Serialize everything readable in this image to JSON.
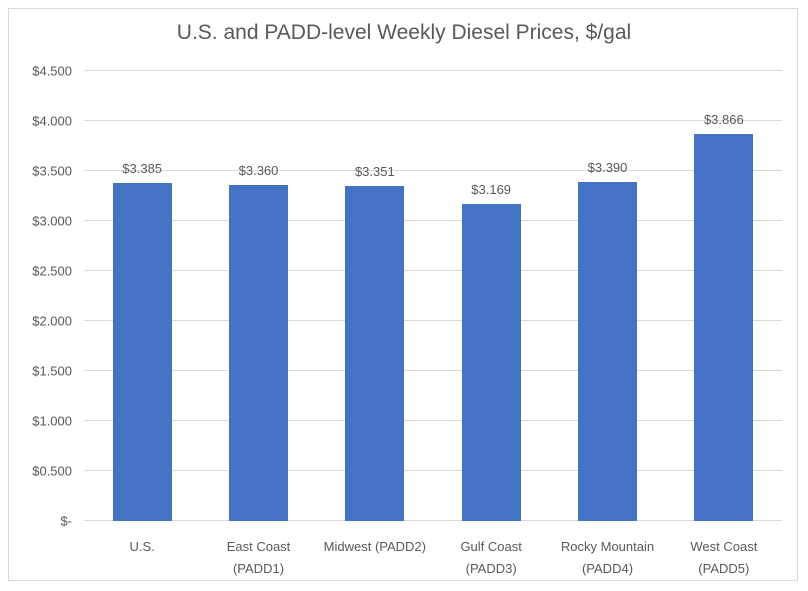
{
  "chart_data": {
    "type": "bar",
    "title": "U.S. and PADD-level Weekly Diesel Prices, $/gal",
    "categories": [
      "U.S.",
      "East Coast (PADD1)",
      "Midwest (PADD2)",
      "Gulf Coast (PADD3)",
      "Rocky Mountain (PADD4)",
      "West Coast (PADD5)"
    ],
    "category_lines": [
      [
        "U.S."
      ],
      [
        "East Coast",
        "(PADD1)"
      ],
      [
        "Midwest (PADD2)"
      ],
      [
        "Gulf Coast",
        "(PADD3)"
      ],
      [
        "Rocky Mountain",
        "(PADD4)"
      ],
      [
        "West Coast",
        "(PADD5)"
      ]
    ],
    "values": [
      3.385,
      3.36,
      3.351,
      3.169,
      3.39,
      3.866
    ],
    "value_labels": [
      "$3.385",
      "$3.360",
      "$3.351",
      "$3.169",
      "$3.390",
      "$3.866"
    ],
    "xlabel": "",
    "ylabel": "",
    "ylim": [
      0,
      4.5
    ],
    "ytick_step": 0.5,
    "yticks": [
      {
        "value": 4.5,
        "label": "$4.500"
      },
      {
        "value": 4.0,
        "label": "$4.000"
      },
      {
        "value": 3.5,
        "label": "$3.500"
      },
      {
        "value": 3.0,
        "label": "$3.000"
      },
      {
        "value": 2.5,
        "label": "$2.500"
      },
      {
        "value": 2.0,
        "label": "$2.000"
      },
      {
        "value": 1.5,
        "label": "$1.500"
      },
      {
        "value": 1.0,
        "label": "$1.000"
      },
      {
        "value": 0.5,
        "label": "$0.500"
      },
      {
        "value": 0.0,
        "label": "$-"
      }
    ],
    "grid": true,
    "legend": "none",
    "colors": {
      "bar": "#4472C4",
      "text": "#595959",
      "gridline": "#D9D9D9",
      "frame_border": "#D9D9D9",
      "background": "#FFFFFF"
    }
  }
}
